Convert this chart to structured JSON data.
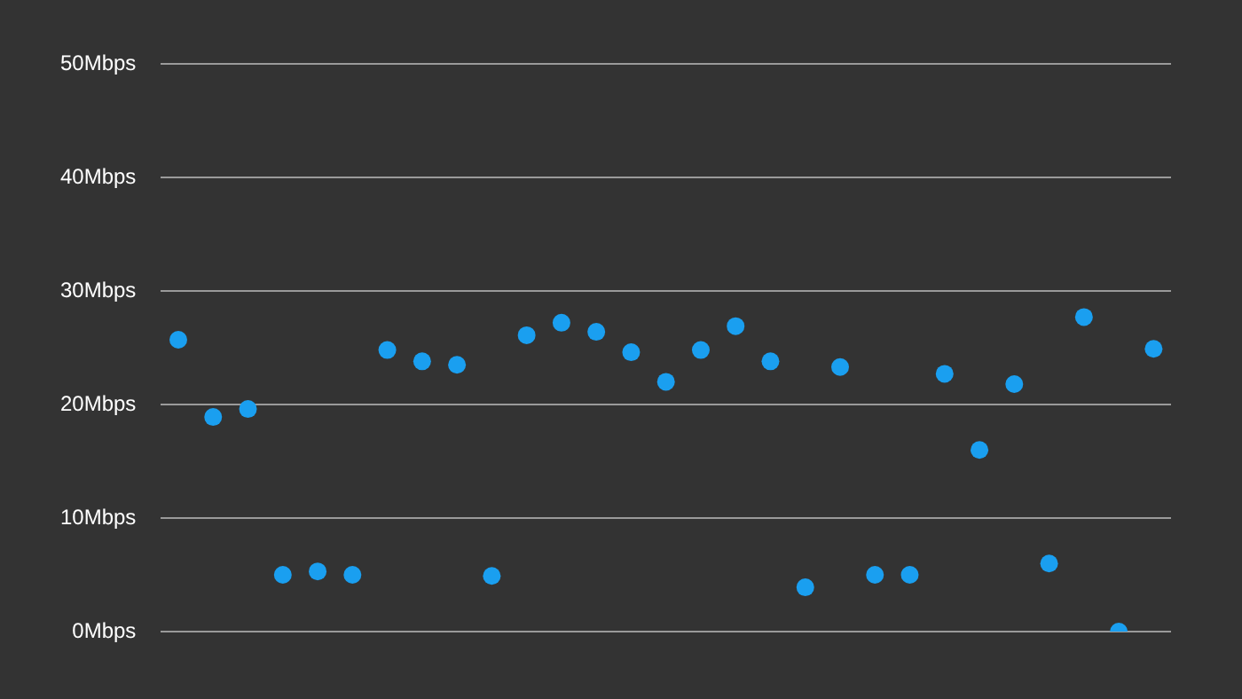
{
  "chart_data": {
    "type": "scatter",
    "categories": [
      null,
      null,
      null,
      null,
      null,
      null,
      null,
      null,
      null,
      null,
      null,
      null,
      null,
      null,
      null,
      null,
      null,
      null,
      null,
      null,
      null,
      null,
      null,
      null,
      null,
      null,
      null,
      null,
      null
    ],
    "series": [
      {
        "color": "#1a9ff0",
        "values": [
          25.7,
          18.9,
          19.6,
          5.0,
          5.3,
          5.0,
          24.8,
          23.8,
          23.5,
          4.9,
          26.1,
          27.2,
          26.4,
          24.6,
          22.0,
          24.8,
          26.9,
          23.8,
          3.9,
          23.3,
          5.0,
          5.0,
          22.7,
          16.0,
          21.8,
          6.0,
          27.7,
          0,
          24.9
        ]
      }
    ],
    "ylim": [
      0,
      50
    ],
    "yticks": [
      {
        "value": 0,
        "label": "0Mbps"
      },
      {
        "value": 10,
        "label": "10Mbps"
      },
      {
        "value": 20,
        "label": "20Mbps"
      },
      {
        "value": 30,
        "label": "30Mbps"
      },
      {
        "value": 40,
        "label": "40Mbps"
      },
      {
        "value": 50,
        "label": "50Mbps"
      }
    ],
    "grid": "y",
    "marker": "circle",
    "tick_labels": "y",
    "legend": false
  }
}
